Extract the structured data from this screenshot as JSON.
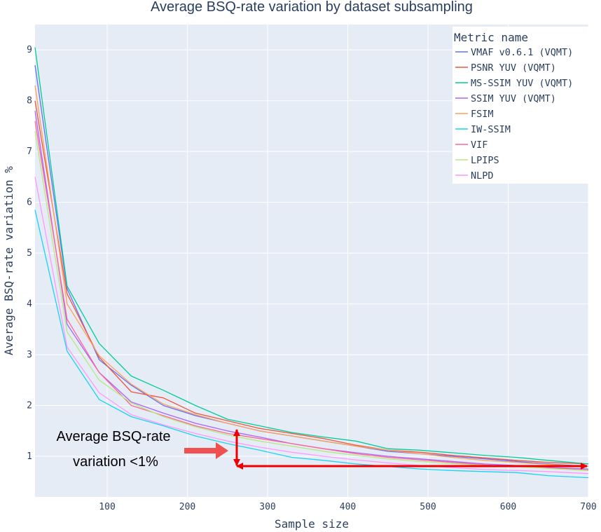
{
  "chart_data": {
    "type": "line",
    "title": "Average BSQ-rate variation by dataset subsampling",
    "xlabel": "Sample size",
    "ylabel": "Average BSQ-rate variation %",
    "xlim": [
      10,
      700
    ],
    "ylim": [
      0.2,
      9.5
    ],
    "xticks": [
      100,
      200,
      300,
      400,
      500,
      600,
      700
    ],
    "yticks": [
      1,
      2,
      3,
      4,
      5,
      6,
      7,
      8,
      9
    ],
    "grid": true,
    "legend": {
      "title": "Metric name",
      "position": "top-right"
    },
    "x": [
      10,
      50,
      90,
      130,
      170,
      210,
      250,
      290,
      330,
      370,
      410,
      450,
      490,
      530,
      570,
      610,
      650,
      700
    ],
    "series": [
      {
        "name": "VMAF v0.6.1 (VQMT)",
        "color": "#636efa",
        "values": [
          8.7,
          4.3,
          2.9,
          2.4,
          2.0,
          1.8,
          1.65,
          1.5,
          1.4,
          1.3,
          1.2,
          1.1,
          1.05,
          1.0,
          0.95,
          0.9,
          0.85,
          0.8
        ]
      },
      {
        "name": "PSNR YUV (VQMT)",
        "color": "#EF553B",
        "values": [
          8.0,
          4.2,
          2.95,
          2.27,
          2.15,
          1.85,
          1.7,
          1.55,
          1.45,
          1.35,
          1.22,
          1.12,
          1.08,
          1.02,
          0.97,
          0.92,
          0.88,
          0.85
        ]
      },
      {
        "name": "MS-SSIM YUV (VQMT)",
        "color": "#00cc96",
        "values": [
          9.05,
          4.35,
          3.22,
          2.58,
          2.3,
          2.0,
          1.73,
          1.6,
          1.47,
          1.38,
          1.3,
          1.15,
          1.12,
          1.07,
          1.02,
          0.98,
          0.92,
          0.85
        ]
      },
      {
        "name": "SSIM YUV (VQMT)",
        "color": "#ab63fa",
        "values": [
          7.8,
          3.6,
          2.65,
          2.07,
          1.85,
          1.65,
          1.5,
          1.38,
          1.25,
          1.15,
          1.07,
          1.0,
          0.95,
          0.9,
          0.85,
          0.82,
          0.78,
          0.75
        ]
      },
      {
        "name": "FSIM",
        "color": "#FFA15A",
        "values": [
          8.3,
          4.0,
          2.98,
          2.42,
          2.03,
          1.82,
          1.65,
          1.5,
          1.4,
          1.3,
          1.2,
          1.12,
          1.05,
          0.98,
          0.92,
          0.88,
          0.84,
          0.8
        ]
      },
      {
        "name": "IW-SSIM",
        "color": "#19d3f3",
        "values": [
          5.85,
          3.07,
          2.12,
          1.78,
          1.6,
          1.4,
          1.25,
          1.12,
          0.98,
          0.92,
          0.85,
          0.8,
          0.75,
          0.72,
          0.7,
          0.68,
          0.62,
          0.58
        ]
      },
      {
        "name": "VIF",
        "color": "#FF6692",
        "values": [
          7.6,
          3.7,
          2.65,
          2.0,
          1.8,
          1.6,
          1.45,
          1.35,
          1.25,
          1.15,
          1.05,
          0.98,
          0.93,
          0.88,
          0.83,
          0.8,
          0.77,
          0.73
        ]
      },
      {
        "name": "LPIPS",
        "color": "#B6E880",
        "values": [
          7.4,
          3.45,
          2.5,
          2.05,
          1.78,
          1.58,
          1.42,
          1.3,
          1.2,
          1.1,
          1.02,
          0.95,
          0.9,
          0.86,
          0.82,
          0.8,
          0.76,
          0.72
        ]
      },
      {
        "name": "NLPD",
        "color": "#FF97FF",
        "values": [
          6.5,
          3.15,
          2.25,
          1.82,
          1.62,
          1.45,
          1.3,
          1.18,
          1.08,
          1.0,
          0.93,
          0.87,
          0.82,
          0.78,
          0.74,
          0.72,
          0.7,
          0.66
        ]
      }
    ],
    "annotation": {
      "line1": "Average BSQ-rate",
      "line2": "variation <1%",
      "color": "#ee0000"
    }
  }
}
